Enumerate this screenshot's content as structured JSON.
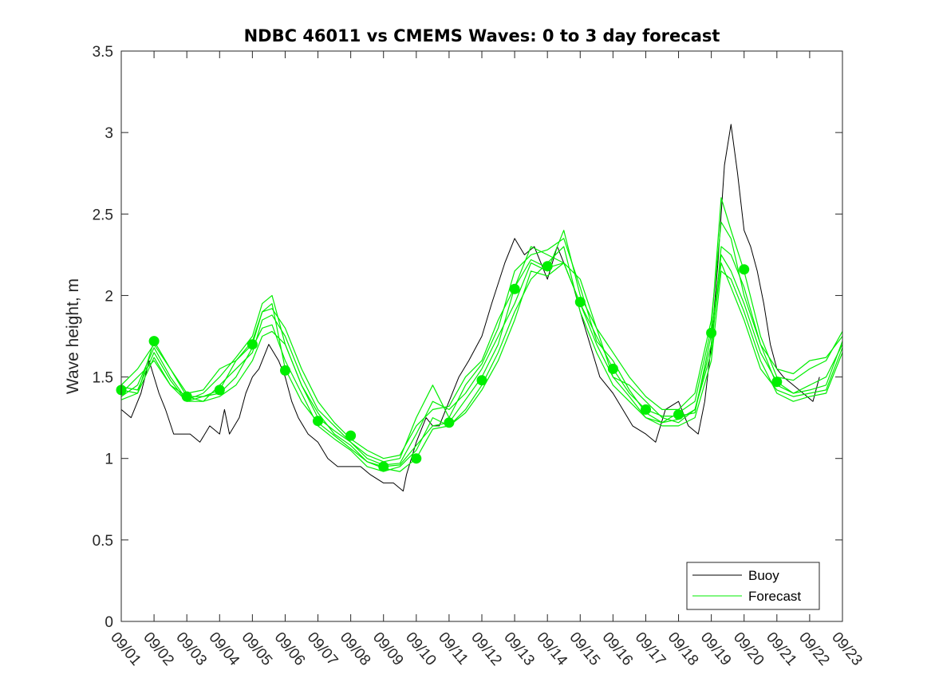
{
  "chart_data": {
    "type": "line",
    "title": "NDBC 46011 vs CMEMS Waves: 0 to 3 day forecast",
    "xlabel": "",
    "ylabel": "Wave height, m",
    "xlim": [
      0,
      22
    ],
    "ylim": [
      0,
      3.5
    ],
    "yticks": [
      0,
      0.5,
      1,
      1.5,
      2,
      2.5,
      3,
      3.5
    ],
    "ytick_labels": [
      "0",
      "0.5",
      "1",
      "1.5",
      "2",
      "2.5",
      "3",
      "3.5"
    ],
    "xtick_labels": [
      "09/01",
      "09/02",
      "09/03",
      "09/04",
      "09/05",
      "09/06",
      "09/07",
      "09/08",
      "09/09",
      "09/10",
      "09/11",
      "09/12",
      "09/13",
      "09/14",
      "09/15",
      "09/16",
      "09/17",
      "09/18",
      "09/19",
      "09/20",
      "09/21",
      "09/22",
      "09/23"
    ],
    "legend": {
      "location": "bottom-right",
      "entries": [
        "Buoy",
        "Forecast"
      ]
    },
    "colors": {
      "buoy": "#000000",
      "forecast": "#00ee00",
      "axis": "#262626"
    },
    "buoy": {
      "x": [
        0.0,
        0.3,
        0.6,
        0.85,
        1.0,
        1.15,
        1.35,
        1.6,
        1.8,
        2.1,
        2.4,
        2.7,
        3.0,
        3.15,
        3.3,
        3.6,
        3.8,
        4.0,
        4.2,
        4.5,
        4.8,
        5.0,
        5.2,
        5.4,
        5.7,
        6.0,
        6.3,
        6.6,
        7.0,
        7.3,
        7.6,
        8.0,
        8.3,
        8.6,
        8.7,
        9.0,
        9.3,
        9.5,
        9.7,
        10.0,
        10.3,
        10.6,
        11.0,
        11.3,
        11.7,
        12.0,
        12.3,
        12.6,
        13.0,
        13.3,
        13.5,
        13.8,
        14.0,
        14.3,
        14.6,
        15.0,
        15.3,
        15.6,
        16.0,
        16.3,
        16.6,
        17.0,
        17.3,
        17.6,
        17.8,
        18.0,
        18.2,
        18.4,
        18.6,
        18.8,
        19.0,
        19.2,
        19.4,
        19.6,
        19.8,
        20.0,
        20.2,
        20.5,
        20.8,
        21.1,
        21.3
      ],
      "y": [
        1.3,
        1.25,
        1.4,
        1.6,
        1.5,
        1.4,
        1.3,
        1.15,
        1.15,
        1.15,
        1.1,
        1.2,
        1.15,
        1.3,
        1.15,
        1.25,
        1.4,
        1.5,
        1.55,
        1.7,
        1.6,
        1.5,
        1.35,
        1.25,
        1.15,
        1.1,
        1.0,
        0.95,
        0.95,
        0.95,
        0.9,
        0.85,
        0.85,
        0.8,
        0.9,
        1.1,
        1.25,
        1.2,
        1.2,
        1.35,
        1.5,
        1.6,
        1.75,
        1.95,
        2.2,
        2.35,
        2.25,
        2.3,
        2.1,
        2.3,
        2.2,
        2.05,
        1.9,
        1.7,
        1.5,
        1.4,
        1.3,
        1.2,
        1.15,
        1.1,
        1.3,
        1.35,
        1.2,
        1.15,
        1.35,
        1.7,
        2.2,
        2.8,
        3.05,
        2.75,
        2.4,
        2.3,
        2.15,
        1.95,
        1.7,
        1.55,
        1.5,
        1.45,
        1.4,
        1.35,
        1.5
      ]
    },
    "forecast_series": [
      {
        "name": "Forecast",
        "x": [
          0.0,
          0.5,
          1.0,
          1.5,
          2.0,
          2.5,
          3.0,
          3.5,
          4.0,
          4.3,
          4.6,
          5.0,
          5.5,
          6.0,
          6.5,
          7.0,
          7.5,
          8.0,
          8.5,
          9.0,
          9.5,
          10.0,
          10.5,
          11.0,
          11.5,
          12.0,
          12.5,
          13.0,
          13.5,
          14.0,
          14.5,
          15.0,
          15.5,
          16.0,
          16.5,
          17.0,
          17.5,
          18.0,
          18.3,
          18.6,
          19.0,
          19.5,
          20.0,
          20.5,
          21.0,
          21.5,
          22.0
        ],
        "y": [
          1.42,
          1.4,
          1.72,
          1.55,
          1.38,
          1.38,
          1.42,
          1.6,
          1.7,
          1.9,
          1.95,
          1.55,
          1.35,
          1.22,
          1.14,
          1.06,
          0.98,
          0.95,
          0.96,
          1.08,
          1.2,
          1.22,
          1.36,
          1.5,
          1.7,
          2.05,
          2.22,
          2.17,
          2.2,
          1.95,
          1.75,
          1.55,
          1.4,
          1.3,
          1.26,
          1.26,
          1.28,
          1.76,
          2.25,
          2.15,
          1.95,
          1.65,
          1.47,
          1.4,
          1.42,
          1.45,
          1.72
        ]
      },
      {
        "name": "Forecast",
        "x": [
          0.0,
          0.5,
          1.0,
          1.5,
          2.0,
          2.5,
          3.0,
          3.5,
          4.0,
          4.3,
          4.6,
          5.0,
          5.5,
          6.0,
          6.5,
          7.0,
          7.5,
          8.0,
          8.5,
          9.0,
          9.5,
          10.0,
          10.5,
          11.0,
          11.5,
          12.0,
          12.5,
          13.0,
          13.5,
          14.0,
          14.5,
          15.0,
          15.5,
          16.0,
          16.5,
          17.0,
          17.5,
          18.0,
          18.3,
          18.6,
          19.0,
          19.5,
          20.0,
          20.5,
          21.0,
          21.5,
          22.0
        ],
        "y": [
          1.38,
          1.45,
          1.68,
          1.5,
          1.36,
          1.4,
          1.5,
          1.62,
          1.75,
          1.95,
          2.0,
          1.7,
          1.45,
          1.25,
          1.17,
          1.1,
          1.02,
          0.98,
          1.0,
          1.25,
          1.45,
          1.25,
          1.45,
          1.58,
          1.8,
          2.15,
          2.25,
          2.28,
          2.35,
          2.05,
          1.72,
          1.6,
          1.42,
          1.28,
          1.22,
          1.28,
          1.35,
          1.8,
          2.6,
          2.4,
          2.15,
          1.75,
          1.5,
          1.48,
          1.55,
          1.6,
          1.78
        ]
      },
      {
        "name": "Forecast",
        "x": [
          0.0,
          0.5,
          1.0,
          1.5,
          2.0,
          2.5,
          3.0,
          3.5,
          4.0,
          4.3,
          4.6,
          5.0,
          5.5,
          6.0,
          6.5,
          7.0,
          7.5,
          8.0,
          8.5,
          9.0,
          9.5,
          10.0,
          10.5,
          11.0,
          11.5,
          12.0,
          12.5,
          13.0,
          13.5,
          14.0,
          14.5,
          15.0,
          15.5,
          16.0,
          16.5,
          17.0,
          17.5,
          18.0,
          18.3,
          18.6,
          19.0,
          19.5,
          20.0,
          20.5,
          21.0,
          21.5,
          22.0
        ],
        "y": [
          1.4,
          1.5,
          1.6,
          1.45,
          1.38,
          1.35,
          1.45,
          1.55,
          1.65,
          1.85,
          1.88,
          1.75,
          1.5,
          1.3,
          1.2,
          1.1,
          1.0,
          0.96,
          0.97,
          1.15,
          1.35,
          1.3,
          1.4,
          1.55,
          1.75,
          1.95,
          2.2,
          2.15,
          2.4,
          2.0,
          1.8,
          1.5,
          1.45,
          1.35,
          1.25,
          1.22,
          1.3,
          1.65,
          2.3,
          2.25,
          2.05,
          1.7,
          1.45,
          1.4,
          1.45,
          1.5,
          1.7
        ]
      },
      {
        "name": "Forecast",
        "x": [
          0.0,
          0.5,
          1.0,
          1.5,
          2.0,
          2.5,
          3.0,
          3.5,
          4.0,
          4.3,
          4.6,
          5.0,
          5.5,
          6.0,
          6.5,
          7.0,
          7.5,
          8.0,
          8.5,
          9.0,
          9.5,
          10.0,
          10.5,
          11.0,
          11.5,
          12.0,
          12.5,
          13.0,
          13.5,
          14.0,
          14.5,
          15.0,
          15.5,
          16.0,
          16.5,
          17.0,
          17.5,
          18.0,
          18.3,
          18.6,
          19.0,
          19.5,
          20.0,
          20.5,
          21.0,
          21.5,
          22.0
        ],
        "y": [
          1.44,
          1.42,
          1.65,
          1.48,
          1.35,
          1.38,
          1.4,
          1.5,
          1.68,
          1.8,
          1.82,
          1.6,
          1.4,
          1.2,
          1.12,
          1.05,
          0.95,
          0.92,
          0.95,
          1.05,
          1.25,
          1.2,
          1.3,
          1.45,
          1.65,
          1.9,
          2.1,
          2.2,
          2.3,
          1.9,
          1.65,
          1.45,
          1.35,
          1.25,
          1.2,
          1.2,
          1.25,
          1.6,
          2.15,
          2.1,
          1.9,
          1.6,
          1.4,
          1.35,
          1.38,
          1.4,
          1.65
        ]
      },
      {
        "name": "Forecast",
        "x": [
          0.0,
          0.5,
          1.0,
          1.5,
          2.0,
          2.5,
          3.0,
          3.5,
          4.0,
          4.3,
          4.6,
          5.0,
          5.5,
          6.0,
          6.5,
          7.0,
          7.5,
          8.0,
          8.5,
          9.0,
          9.5,
          10.0,
          10.5,
          11.0,
          11.5,
          12.0,
          12.5,
          13.0,
          13.5,
          14.0,
          14.5,
          15.0,
          15.5,
          16.0,
          16.5,
          17.0,
          17.5,
          18.0,
          18.3,
          18.6,
          19.0,
          19.5,
          20.0,
          20.5,
          21.0,
          21.5,
          22.0
        ],
        "y": [
          1.45,
          1.55,
          1.7,
          1.55,
          1.4,
          1.42,
          1.55,
          1.6,
          1.72,
          1.9,
          1.92,
          1.8,
          1.55,
          1.35,
          1.22,
          1.12,
          1.05,
          1.0,
          1.02,
          1.2,
          1.3,
          1.32,
          1.5,
          1.6,
          1.85,
          2.05,
          2.3,
          2.25,
          2.2,
          2.1,
          1.8,
          1.65,
          1.5,
          1.38,
          1.3,
          1.3,
          1.4,
          1.85,
          2.45,
          2.35,
          2.0,
          1.7,
          1.55,
          1.52,
          1.6,
          1.62,
          1.75
        ]
      },
      {
        "name": "Forecast",
        "x": [
          0.0,
          0.5,
          1.0,
          1.5,
          2.0,
          2.5,
          3.0,
          3.5,
          4.0,
          4.3,
          4.6,
          5.0,
          5.5,
          6.0,
          6.5,
          7.0,
          7.5,
          8.0,
          8.5,
          9.0,
          9.5,
          10.0,
          10.5,
          11.0,
          11.5,
          12.0,
          12.5,
          13.0,
          13.5,
          14.0,
          14.5,
          15.0,
          15.5,
          16.0,
          16.5,
          17.0,
          17.5,
          18.0,
          18.3,
          18.6,
          19.0,
          19.5,
          20.0,
          20.5,
          21.0,
          21.5,
          22.0
        ],
        "y": [
          1.36,
          1.4,
          1.62,
          1.45,
          1.35,
          1.35,
          1.38,
          1.45,
          1.6,
          1.75,
          1.78,
          1.7,
          1.45,
          1.28,
          1.15,
          1.08,
          0.98,
          0.94,
          0.92,
          1.0,
          1.18,
          1.2,
          1.28,
          1.42,
          1.6,
          1.85,
          2.15,
          2.12,
          2.2,
          1.95,
          1.7,
          1.5,
          1.38,
          1.25,
          1.22,
          1.24,
          1.3,
          1.7,
          2.2,
          2.05,
          1.85,
          1.55,
          1.42,
          1.38,
          1.4,
          1.42,
          1.68
        ]
      }
    ],
    "forecast_markers": {
      "x": [
        0,
        1,
        2,
        3,
        4,
        5,
        6,
        7,
        8,
        9,
        10,
        11,
        12,
        13,
        14,
        15,
        16,
        17,
        18,
        19,
        20
      ],
      "y": [
        1.42,
        1.72,
        1.38,
        1.42,
        1.7,
        1.54,
        1.23,
        1.14,
        0.95,
        1.0,
        1.22,
        1.48,
        2.04,
        2.18,
        1.96,
        1.55,
        1.3,
        1.27,
        1.77,
        2.16,
        1.47
      ]
    }
  }
}
